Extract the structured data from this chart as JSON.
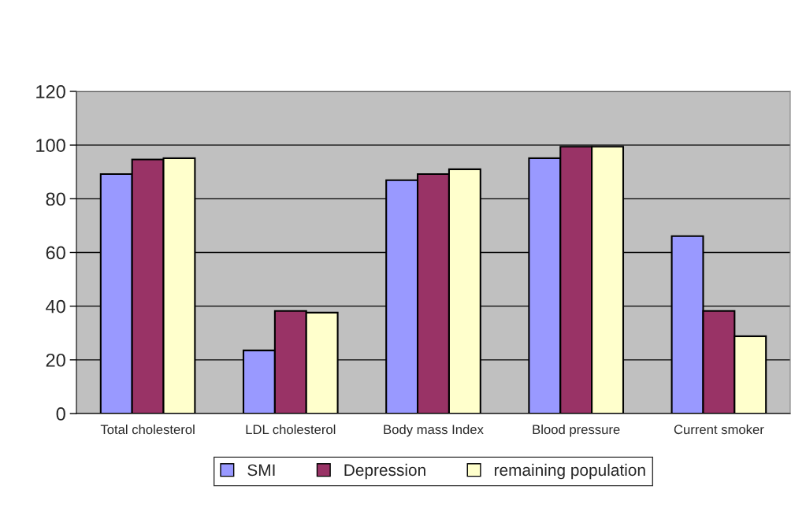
{
  "chart_data": {
    "type": "bar",
    "categories": [
      "Total cholesterol",
      "LDL cholesterol",
      "Body mass Index",
      "Blood pressure",
      "Current smoker"
    ],
    "series": [
      {
        "name": "SMI",
        "color": "#9999ff",
        "values": [
          89.2,
          23.5,
          86.9,
          95.1,
          66.1
        ]
      },
      {
        "name": "Depression",
        "color": "#993366",
        "values": [
          94.6,
          38.2,
          89.2,
          99.4,
          38.2
        ]
      },
      {
        "name": "remaining population",
        "color": "#ffffcc",
        "values": [
          95.1,
          37.6,
          91.0,
          99.4,
          28.8
        ]
      }
    ],
    "ylim": [
      0,
      120
    ],
    "yticks": [
      0,
      20,
      40,
      60,
      80,
      100,
      120
    ],
    "grid": "y",
    "legend": "bottom"
  }
}
